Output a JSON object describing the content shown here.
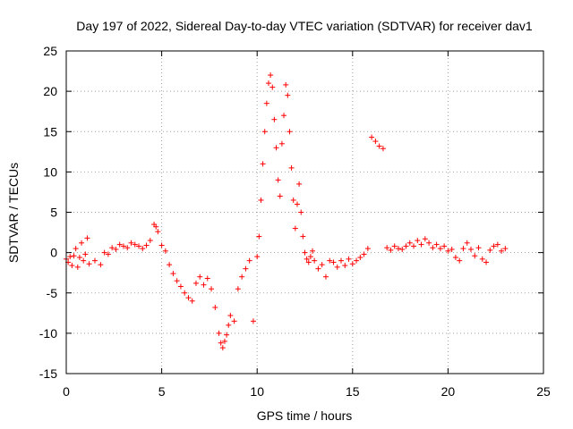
{
  "chart_data": {
    "type": "scatter",
    "title": "Day 197 of 2022, Sidereal Day-to-day VTEC variation (SDTVAR) for receiver dav1",
    "xlabel": "GPS time / hours",
    "ylabel": "SDTVAR / TECUs",
    "xlim": [
      0,
      25
    ],
    "ylim": [
      -15,
      25
    ],
    "x_ticks": [
      "0",
      "5",
      "10",
      "15",
      "20",
      "25"
    ],
    "y_ticks": [
      "-15",
      "-10",
      "-5",
      "0",
      "5",
      "10",
      "15",
      "20",
      "25"
    ],
    "grid": true,
    "marker": "plus",
    "series": [
      {
        "name": "SDTVAR",
        "color": "#ff0000",
        "x": [
          0.0,
          0.1,
          0.2,
          0.3,
          0.4,
          0.5,
          0.6,
          0.7,
          0.8,
          0.9,
          1.0,
          1.1,
          1.2,
          1.5,
          1.8,
          2.0,
          2.2,
          2.4,
          2.6,
          2.8,
          3.0,
          3.2,
          3.4,
          3.6,
          3.8,
          4.0,
          4.2,
          4.4,
          4.6,
          4.7,
          4.8,
          5.0,
          5.2,
          5.4,
          5.6,
          5.8,
          6.0,
          6.2,
          6.4,
          6.6,
          6.8,
          7.0,
          7.2,
          7.4,
          7.6,
          7.8,
          8.0,
          8.1,
          8.2,
          8.3,
          8.4,
          8.5,
          8.6,
          8.8,
          9.0,
          9.2,
          9.4,
          9.6,
          9.8,
          10.0,
          10.1,
          10.2,
          10.3,
          10.4,
          10.5,
          10.6,
          10.7,
          10.8,
          10.9,
          11.0,
          11.1,
          11.2,
          11.3,
          11.4,
          11.5,
          11.6,
          11.7,
          11.8,
          11.9,
          12.0,
          12.1,
          12.2,
          12.3,
          12.4,
          12.5,
          12.6,
          12.7,
          12.8,
          12.9,
          13.0,
          13.2,
          13.4,
          13.6,
          13.8,
          14.0,
          14.2,
          14.4,
          14.6,
          14.8,
          15.0,
          15.2,
          15.4,
          15.6,
          15.8,
          16.0,
          16.2,
          16.4,
          16.6,
          16.8,
          17.0,
          17.2,
          17.4,
          17.6,
          17.8,
          18.0,
          18.2,
          18.4,
          18.6,
          18.8,
          19.0,
          19.2,
          19.4,
          19.6,
          19.8,
          20.0,
          20.2,
          20.4,
          20.6,
          20.8,
          21.0,
          21.2,
          21.4,
          21.6,
          21.8,
          22.0,
          22.2,
          22.4,
          22.6,
          22.8,
          23.0
        ],
        "y": [
          -0.8,
          -1.2,
          -0.5,
          -1.6,
          -0.4,
          0.5,
          -1.8,
          -0.6,
          1.2,
          -1.0,
          -0.2,
          1.8,
          -1.4,
          -1.0,
          -1.5,
          0.0,
          -0.2,
          0.6,
          0.4,
          1.0,
          0.8,
          0.6,
          1.2,
          1.0,
          0.8,
          0.5,
          0.9,
          1.5,
          3.5,
          3.2,
          2.6,
          0.9,
          0.2,
          -1.5,
          -2.6,
          -3.5,
          -4.2,
          -5.0,
          -5.6,
          -6.0,
          -3.8,
          -3.0,
          -4.0,
          -3.2,
          -4.5,
          -6.8,
          -10.0,
          -11.2,
          -11.8,
          -11.0,
          -10.2,
          -9.0,
          -7.8,
          -8.5,
          -4.5,
          -3.0,
          -2.0,
          -1.0,
          -8.5,
          -0.5,
          2.0,
          6.5,
          11.0,
          15.0,
          18.5,
          21.0,
          22.0,
          20.5,
          16.5,
          13.0,
          9.0,
          7.0,
          13.5,
          17.0,
          20.8,
          19.5,
          15.0,
          10.5,
          6.5,
          3.0,
          6.0,
          8.5,
          5.0,
          2.0,
          0.0,
          -0.8,
          -1.2,
          -0.5,
          0.2,
          -1.0,
          -2.0,
          -1.5,
          -3.0,
          -1.0,
          -1.2,
          -1.8,
          -1.0,
          -1.6,
          -0.8,
          -1.4,
          -1.0,
          -0.6,
          -0.2,
          0.5,
          14.3,
          13.8,
          13.2,
          12.9,
          0.6,
          0.3,
          0.8,
          0.5,
          0.4,
          0.8,
          1.2,
          0.8,
          1.5,
          1.0,
          1.7,
          1.2,
          0.6,
          1.0,
          0.5,
          0.8,
          0.2,
          0.4,
          -0.6,
          -1.0,
          0.5,
          1.2,
          0.4,
          -0.4,
          0.6,
          -0.8,
          -1.2,
          0.3,
          0.8,
          1.0,
          0.2,
          0.5
        ]
      }
    ]
  }
}
